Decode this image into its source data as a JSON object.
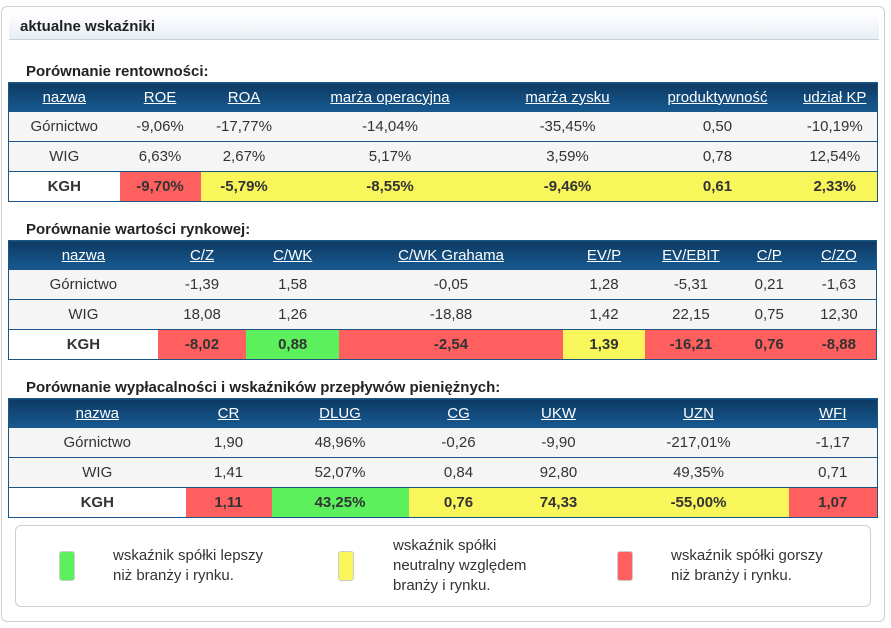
{
  "panel": {
    "title": "aktualne wskaźniki"
  },
  "colors": {
    "better": "#5df05d",
    "neutral": "#f8f65a",
    "worse": "#ff5f5f",
    "header_dark": "#0e3a63",
    "header_light": "#175a91"
  },
  "profitability": {
    "title": "Porównanie rentowności:",
    "headers": [
      "nazwa",
      "ROE",
      "ROA",
      "marża operacyjna",
      "marża zysku",
      "produktywność",
      "udział KP"
    ],
    "rows": [
      {
        "cells": [
          "Górnictwo",
          "-9,06%",
          "-17,77%",
          "-14,04%",
          "-35,45%",
          "0,50",
          "-10,19%"
        ]
      },
      {
        "cells": [
          "WIG",
          "6,63%",
          "2,67%",
          "5,17%",
          "3,59%",
          "0,78",
          "12,54%"
        ]
      },
      {
        "cells": [
          "KGH",
          "-9,70%",
          "-5,79%",
          "-8,55%",
          "-9,46%",
          "0,61",
          "2,33%"
        ],
        "status": [
          "",
          "worse",
          "neutral",
          "neutral",
          "neutral",
          "neutral",
          "neutral"
        ]
      }
    ]
  },
  "market_value": {
    "title": "Porównanie wartości rynkowej:",
    "headers": [
      "nazwa",
      "C/Z",
      "C/WK",
      "C/WK Grahama",
      "EV/P",
      "EV/EBIT",
      "C/P",
      "C/ZO"
    ],
    "rows": [
      {
        "cells": [
          "Górnictwo",
          "-1,39",
          "1,58",
          "-0,05",
          "1,28",
          "-5,31",
          "0,21",
          "-1,63"
        ]
      },
      {
        "cells": [
          "WIG",
          "18,08",
          "1,26",
          "-18,88",
          "1,42",
          "22,15",
          "0,75",
          "12,30"
        ]
      },
      {
        "cells": [
          "KGH",
          "-8,02",
          "0,88",
          "-2,54",
          "1,39",
          "-16,21",
          "0,76",
          "-8,88"
        ],
        "status": [
          "",
          "worse",
          "better",
          "worse",
          "neutral",
          "worse",
          "worse",
          "worse"
        ]
      }
    ]
  },
  "solvency": {
    "title": "Porównanie wypłacalności i wskaźników przepływów pieniężnych:",
    "headers": [
      "nazwa",
      "CR",
      "DLUG",
      "CG",
      "UKW",
      "UZN",
      "WFI"
    ],
    "rows": [
      {
        "cells": [
          "Górnictwo",
          "1,90",
          "48,96%",
          "-0,26",
          "-9,90",
          "-217,01%",
          "-1,17"
        ]
      },
      {
        "cells": [
          "WIG",
          "1,41",
          "52,07%",
          "0,84",
          "92,80",
          "49,35%",
          "0,71"
        ]
      },
      {
        "cells": [
          "KGH",
          "1,11",
          "43,25%",
          "0,76",
          "74,33",
          "-55,00%",
          "1,07"
        ],
        "status": [
          "",
          "worse",
          "better",
          "neutral",
          "neutral",
          "neutral",
          "worse"
        ]
      }
    ]
  },
  "legend": {
    "items": [
      {
        "status": "better",
        "label_line1": "wskaźnik spółki lepszy",
        "label_line2": "niż branży i rynku.",
        "label_line3": ""
      },
      {
        "status": "neutral",
        "label_line1": "wskaźnik spółki",
        "label_line2": "neutralny względem",
        "label_line3": "branży i rynku."
      },
      {
        "status": "worse",
        "label_line1": "wskaźnik spółki gorszy",
        "label_line2": "niż branży i rynku.",
        "label_line3": ""
      }
    ]
  }
}
